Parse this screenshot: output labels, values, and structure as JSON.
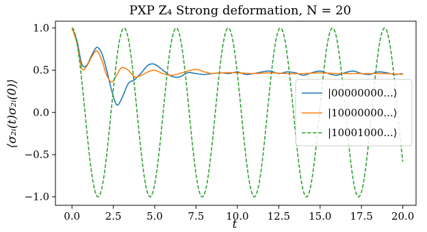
{
  "chart_data": {
    "type": "line",
    "title": "PXP Z₄ Strong deformation, N = 20",
    "xlabel": "t",
    "ylabel": "⟨σ₂ᵢ(t)σ₂ᵢ(0)⟩",
    "xlim": [
      -1.0,
      20.8
    ],
    "ylim": [
      -1.1,
      1.08
    ],
    "x_ticks": [
      0.0,
      2.5,
      5.0,
      7.5,
      10.0,
      12.5,
      15.0,
      17.5,
      20.0
    ],
    "x_tick_labels": [
      "0.0",
      "2.5",
      "5.0",
      "7.5",
      "10.0",
      "12.5",
      "15.0",
      "17.5",
      "20.0"
    ],
    "y_ticks": [
      1.0,
      0.5,
      0.0,
      -0.5,
      -1.0
    ],
    "y_tick_labels": [
      "1.0",
      "0.5",
      "0.0",
      "−0.5",
      "−1.0"
    ],
    "grid": false,
    "legend_position": "center-right",
    "series": [
      {
        "name": "|00000000...⟩",
        "color": "#1f77b4",
        "dash": "solid",
        "x": [
          0,
          0.3,
          0.6,
          0.9,
          1.2,
          1.5,
          1.8,
          2.1,
          2.4,
          2.7,
          3.0,
          3.4,
          3.8,
          4.2,
          4.6,
          5.0,
          5.5,
          6.0,
          6.5,
          7.0,
          7.5,
          8.0,
          8.5,
          9.0,
          9.5,
          10.0,
          10.5,
          11.0,
          11.5,
          12.0,
          12.5,
          13.0,
          13.5,
          14.0,
          14.5,
          15.0,
          15.5,
          16.0,
          16.5,
          17.0,
          17.5,
          18.0,
          18.5,
          19.0,
          19.5,
          20.0
        ],
        "y": [
          1.0,
          0.85,
          0.57,
          0.56,
          0.68,
          0.77,
          0.7,
          0.5,
          0.26,
          0.09,
          0.16,
          0.34,
          0.39,
          0.47,
          0.56,
          0.57,
          0.5,
          0.43,
          0.42,
          0.47,
          0.46,
          0.45,
          0.46,
          0.47,
          0.46,
          0.48,
          0.45,
          0.46,
          0.48,
          0.49,
          0.46,
          0.48,
          0.47,
          0.44,
          0.47,
          0.49,
          0.46,
          0.44,
          0.47,
          0.49,
          0.46,
          0.45,
          0.48,
          0.47,
          0.45,
          0.46
        ]
      },
      {
        "name": "|10000000...⟩",
        "color": "#ff7f0e",
        "dash": "solid",
        "x": [
          0,
          0.3,
          0.6,
          0.9,
          1.2,
          1.5,
          1.8,
          2.1,
          2.4,
          2.7,
          3.0,
          3.4,
          3.8,
          4.2,
          4.6,
          5.0,
          5.5,
          6.0,
          6.5,
          7.0,
          7.5,
          8.0,
          8.5,
          9.0,
          10.0,
          11.0,
          12.0,
          13.0,
          14.0,
          15.0,
          16.0,
          17.0,
          18.0,
          19.0,
          20.0
        ],
        "y": [
          1.0,
          0.82,
          0.52,
          0.55,
          0.66,
          0.73,
          0.62,
          0.44,
          0.36,
          0.44,
          0.53,
          0.5,
          0.42,
          0.44,
          0.48,
          0.5,
          0.46,
          0.44,
          0.46,
          0.49,
          0.51,
          0.48,
          0.46,
          0.47,
          0.47,
          0.46,
          0.47,
          0.46,
          0.46,
          0.47,
          0.46,
          0.46,
          0.46,
          0.46,
          0.45
        ]
      },
      {
        "name": "|10001000...⟩",
        "color": "#2ca02c",
        "dash": "dashed",
        "amplitude": 1.0,
        "period": 3.15,
        "x_start": 0,
        "x_end": 20.0,
        "formula": "y = cos(2πt / period)"
      }
    ]
  }
}
